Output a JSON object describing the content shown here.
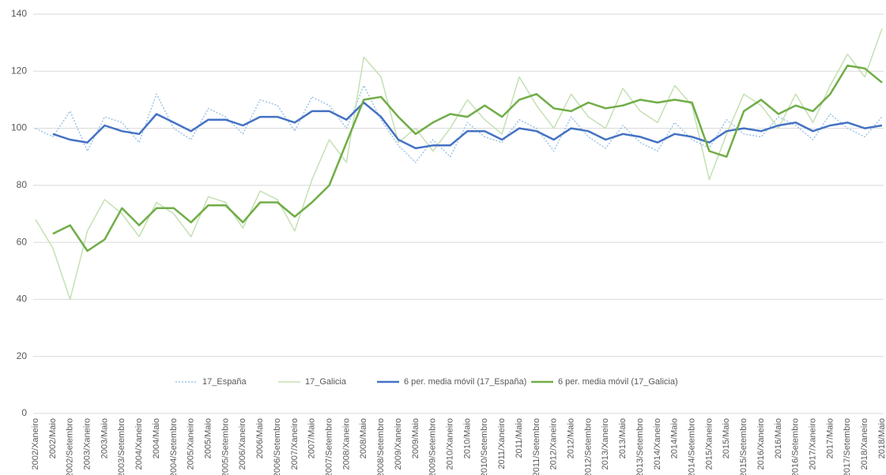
{
  "chart_data": {
    "type": "line",
    "categories": [
      "2002/Xaneiro",
      "2002/Maio",
      "2002/Setembro",
      "2003/Xaneiro",
      "2003/Maio",
      "2003/Setembro",
      "2004/Xaneiro",
      "2004/Maio",
      "2004/Setembro",
      "2005/Xaneiro",
      "2005/Maio",
      "2005/Setembro",
      "2006/Xaneiro",
      "2006/Maio",
      "2006/Setembro",
      "2007/Xaneiro",
      "2007/Maio",
      "2007/Setembro",
      "2008/Xaneiro",
      "2008/Maio",
      "2008/Setembro",
      "2009/Xaneiro",
      "2009/Maio",
      "2009/Setembro",
      "2010/Xaneiro",
      "2010/Maio",
      "2010/Setembro",
      "2011/Xaneiro",
      "2011/Maio",
      "2011/Setembro",
      "2012/Xaneiro",
      "2012/Maio",
      "2012/Setembro",
      "2013/Xaneiro",
      "2013/Maio",
      "2013/Setembro",
      "2014/Xaneiro",
      "2014/Maio",
      "2014/Setembro",
      "2015/Xaneiro",
      "2015/Maio",
      "2015/Setembro",
      "2016/Xaneiro",
      "2016/Maio",
      "2016/Setembro",
      "2017/Xaneiro",
      "2017/Maio",
      "2017/Setembro",
      "2018/Xaneiro",
      "2018/Maio"
    ],
    "series": [
      {
        "name": "17_España",
        "color": "#9dc3e6",
        "style": "dotted",
        "values": [
          100,
          97,
          106,
          92,
          104,
          102,
          95,
          112,
          100,
          96,
          107,
          104,
          98,
          110,
          108,
          99,
          111,
          108,
          100,
          115,
          103,
          94,
          88,
          96,
          90,
          102,
          97,
          95,
          103,
          100,
          92,
          104,
          97,
          93,
          101,
          95,
          92,
          102,
          96,
          93,
          103,
          98,
          97,
          104,
          101,
          96,
          105,
          100,
          97,
          104
        ]
      },
      {
        "name": "17_Galicia",
        "color": "#c5e0b4",
        "style": "solid",
        "values": [
          68,
          58,
          40,
          64,
          75,
          70,
          62,
          74,
          70,
          62,
          76,
          74,
          65,
          78,
          75,
          64,
          82,
          96,
          88,
          125,
          118,
          95,
          100,
          92,
          100,
          110,
          103,
          98,
          118,
          108,
          100,
          112,
          104,
          100,
          114,
          106,
          102,
          115,
          108,
          82,
          98,
          112,
          108,
          100,
          112,
          102,
          115,
          126,
          118,
          135
        ]
      },
      {
        "name": "6 per. media móvil (17_España)",
        "color": "#4472c4",
        "style": "solid",
        "values": [
          null,
          98,
          96,
          95,
          101,
          99,
          98,
          105,
          102,
          99,
          103,
          103,
          101,
          104,
          104,
          102,
          106,
          106,
          103,
          109,
          104,
          96,
          93,
          94,
          94,
          99,
          99,
          96,
          100,
          99,
          96,
          100,
          99,
          96,
          98,
          97,
          95,
          98,
          97,
          95,
          99,
          100,
          99,
          101,
          102,
          99,
          101,
          102,
          100,
          101
        ]
      },
      {
        "name": "6 per. media móvil (17_Galicia)",
        "color": "#70ad47",
        "style": "solid",
        "values": [
          null,
          63,
          66,
          57,
          61,
          72,
          66,
          72,
          72,
          67,
          73,
          73,
          67,
          74,
          74,
          69,
          74,
          80,
          95,
          110,
          111,
          104,
          98,
          102,
          105,
          104,
          108,
          104,
          110,
          112,
          107,
          106,
          109,
          107,
          108,
          110,
          109,
          110,
          109,
          92,
          90,
          106,
          110,
          105,
          108,
          106,
          112,
          122,
          121,
          116
        ]
      }
    ],
    "ylim": [
      0,
      140
    ],
    "yticks": [
      0,
      20,
      40,
      60,
      80,
      100,
      120,
      140
    ],
    "grid": true,
    "legend": "bottom"
  }
}
